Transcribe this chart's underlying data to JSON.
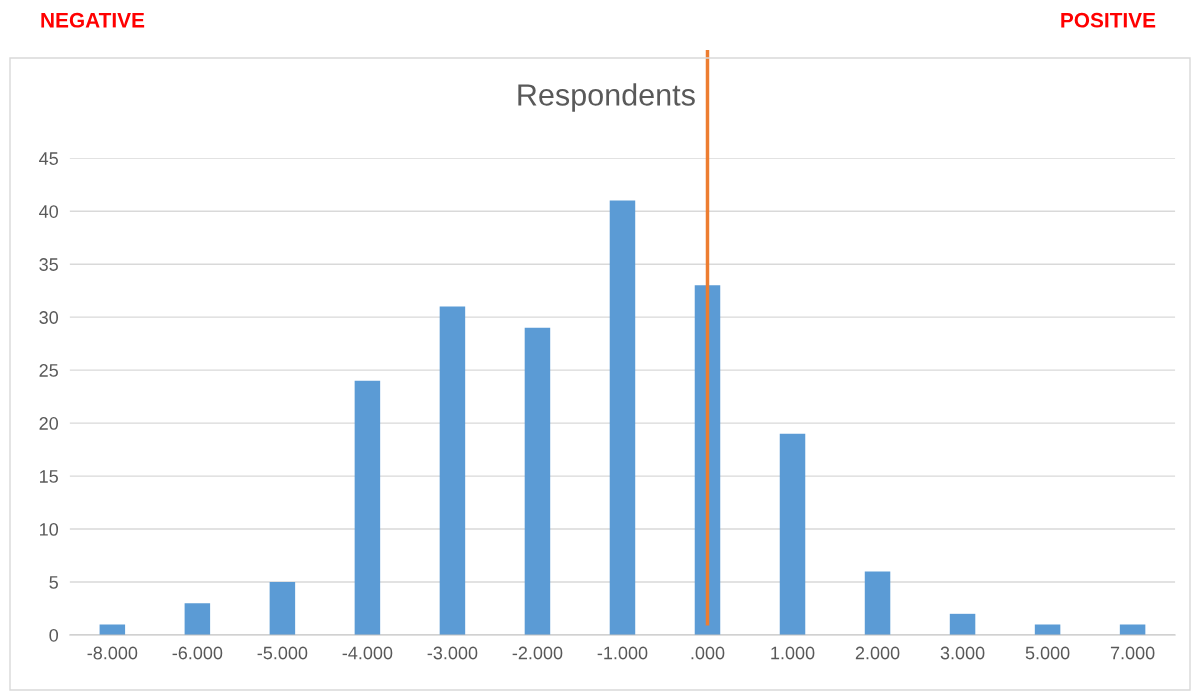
{
  "chart_data": {
    "type": "bar",
    "title": "Respondents",
    "categories": [
      "-8.000",
      "-6.000",
      "-5.000",
      "-4.000",
      "-3.000",
      "-2.000",
      "-1.000",
      ".000",
      "1.000",
      "2.000",
      "3.000",
      "5.000",
      "7.000"
    ],
    "values": [
      1,
      3,
      5,
      24,
      31,
      29,
      41,
      33,
      19,
      6,
      2,
      1,
      1
    ],
    "color": "#5b9bd5",
    "ylim": [
      0,
      45
    ],
    "yticks": [
      0,
      5,
      10,
      15,
      20,
      25,
      30,
      35,
      40,
      45
    ],
    "grid": "y",
    "ref_lines": [
      {
        "axis": "x",
        "value": ".000",
        "color": "#ed7d31"
      }
    ],
    "annotations": [
      "NEGATIVE",
      "POSITIVE"
    ]
  }
}
